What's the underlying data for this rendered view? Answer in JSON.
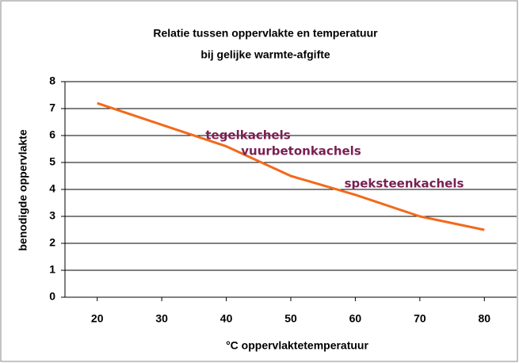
{
  "chart_data": {
    "type": "line",
    "title": [
      "Relatie tussen oppervlakte en temperatuur",
      "bij gelijke warmte-afgifte"
    ],
    "x_label": "°C oppervlaktetemperatuur",
    "y_label": "benodigde oppervlakte",
    "x": [
      20,
      30,
      40,
      50,
      60,
      70,
      80
    ],
    "series": [
      {
        "name": "benodigde oppervlakte",
        "color": "#f26a1b",
        "values": [
          7.2,
          6.4,
          5.6,
          4.5,
          3.8,
          3.0,
          2.5
        ]
      }
    ],
    "xlim": [
      15,
      85
    ],
    "xticks": [
      20,
      30,
      40,
      50,
      60,
      70,
      80
    ],
    "ylim": [
      0,
      8
    ],
    "yticks": [
      0,
      1,
      2,
      3,
      4,
      5,
      6,
      7,
      8
    ],
    "grid": true,
    "annotations": [
      "tegelkachels",
      "vuurbetonkachels",
      "speksteenkachels"
    ]
  }
}
